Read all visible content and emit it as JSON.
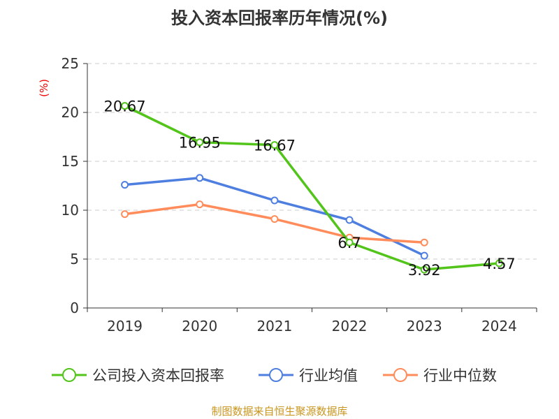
{
  "chart_data": {
    "type": "line",
    "title": "投入资本回报率历年情况(%)",
    "ylabel": "(%)",
    "categories": [
      "2019",
      "2020",
      "2021",
      "2022",
      "2023",
      "2024"
    ],
    "ylim": [
      0,
      25
    ],
    "yticks": [
      0,
      5,
      10,
      15,
      20,
      25
    ],
    "grid": true,
    "legend_position": "bottom",
    "series": [
      {
        "name": "公司投入资本回报率",
        "color": "#52c41a",
        "values": [
          20.67,
          16.95,
          16.67,
          6.7,
          3.92,
          4.57
        ],
        "labels": [
          "20.67",
          "16.95",
          "16.67",
          "6.7",
          "3.92",
          "4.57"
        ]
      },
      {
        "name": "行业均值",
        "color": "#4e7fe0",
        "values": [
          12.6,
          13.3,
          11.0,
          9.0,
          5.35,
          null
        ]
      },
      {
        "name": "行业中位数",
        "color": "#ff8c5a",
        "values": [
          9.6,
          10.6,
          9.1,
          7.2,
          6.7,
          null
        ]
      }
    ]
  },
  "source": "制图数据来自恒生聚源数据库"
}
